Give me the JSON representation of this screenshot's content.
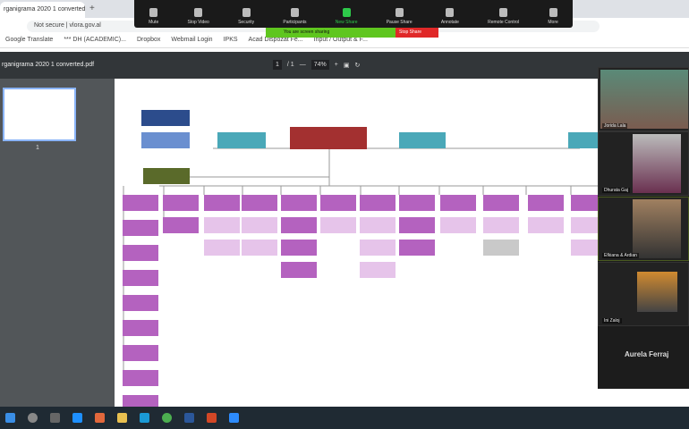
{
  "browser": {
    "tab_title": "rganigrama 2020 1 converted.pdf",
    "new_tab": "+",
    "address": "Not secure | vlora.gov.al",
    "bookmarks": [
      "Google Translate",
      "*** DH (ACADEMIC)...",
      "Dropbox",
      "Webmail Login",
      "IPKS",
      "Acad Dispozat Fe...",
      "Input / Output & F..."
    ]
  },
  "zoom_toolbar": {
    "items": [
      {
        "label": "Mute",
        "icon": "microphone-icon"
      },
      {
        "label": "Stop Video",
        "icon": "video-icon"
      },
      {
        "label": "Security",
        "icon": "shield-icon"
      },
      {
        "label": "Participants",
        "icon": "participants-icon"
      },
      {
        "label": "New Share",
        "icon": "share-icon",
        "active": true
      },
      {
        "label": "Pause Share",
        "icon": "pause-icon"
      },
      {
        "label": "Annotate",
        "icon": "pen-icon"
      },
      {
        "label": "Remote Control",
        "icon": "mouse-icon"
      },
      {
        "label": "More",
        "icon": "more-icon"
      }
    ],
    "sharing_banner": "You are screen sharing",
    "stop_share": "Stop Share"
  },
  "pdf_viewer": {
    "title": "rganigrama 2020 1 converted.pdf",
    "page_current": "1",
    "page_total": "/ 1",
    "zoom": "74%",
    "thumbnail_page": "1"
  },
  "participants": [
    {
      "name": "Jorida Lala"
    },
    {
      "name": "Dhurata Gaj"
    },
    {
      "name": "Efkiana & Ardian"
    },
    {
      "name": "Ini Zaloj"
    },
    {
      "name": "Aurela Ferraj"
    }
  ],
  "colors": {
    "accent_green": "#5fc61f",
    "stop_red": "#e02828",
    "org_magenta": "#b462bf",
    "org_red": "#a33030",
    "org_teal": "#4aa8b8"
  }
}
